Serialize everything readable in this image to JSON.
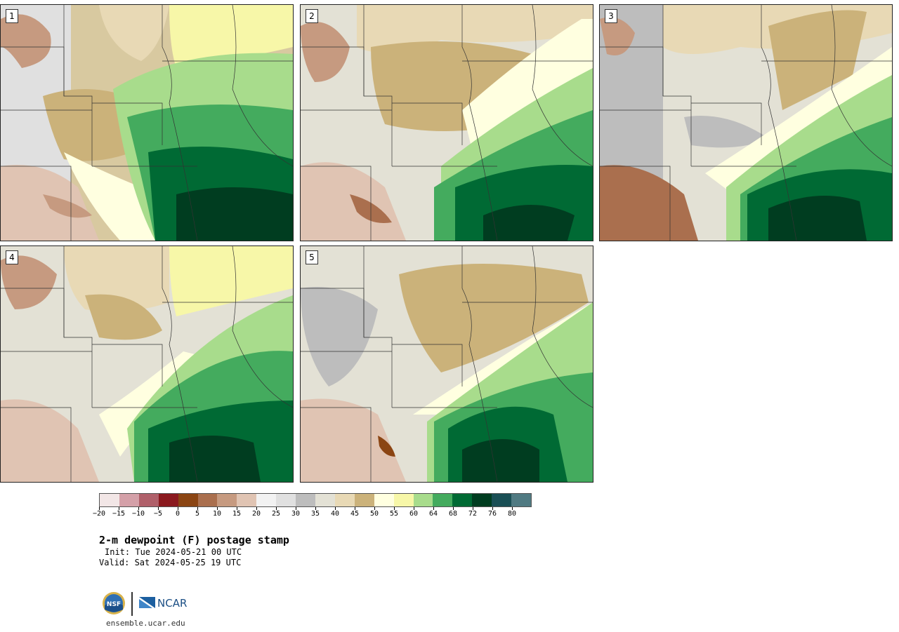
{
  "panels": [
    {
      "label": "1"
    },
    {
      "label": "2"
    },
    {
      "label": "3"
    },
    {
      "label": "4"
    },
    {
      "label": "5"
    }
  ],
  "colorbar": {
    "colors": [
      "#f2e6e6",
      "#d4a0a8",
      "#b0606a",
      "#8b1a1f",
      "#8b4513",
      "#aa6f4e",
      "#c69a80",
      "#e0c4b3",
      "#f2f2f2",
      "#e0e0e0",
      "#bdbdbd",
      "#e3e1d5",
      "#e8d9b5",
      "#cbb27a",
      "#ffffe0",
      "#f7f7a8",
      "#a8dc8c",
      "#44ab5e",
      "#006a34",
      "#003d20",
      "#1a4f55",
      "#507a82"
    ],
    "tick_labels": [
      "−20",
      "−15",
      "−10",
      "−5",
      "0",
      "5",
      "10",
      "15",
      "20",
      "25",
      "30",
      "35",
      "40",
      "45",
      "50",
      "55",
      "60",
      "64",
      "68",
      "72",
      "76",
      "80"
    ]
  },
  "title": "2-m dewpoint (F) postage stamp",
  "init": "Init: Tue 2024-05-21 00 UTC",
  "valid": "Valid: Sat 2024-05-25 19 UTC",
  "footer": {
    "logo_left": "NSF",
    "logo_right": "NCAR",
    "url": "ensemble.ucar.edu"
  }
}
